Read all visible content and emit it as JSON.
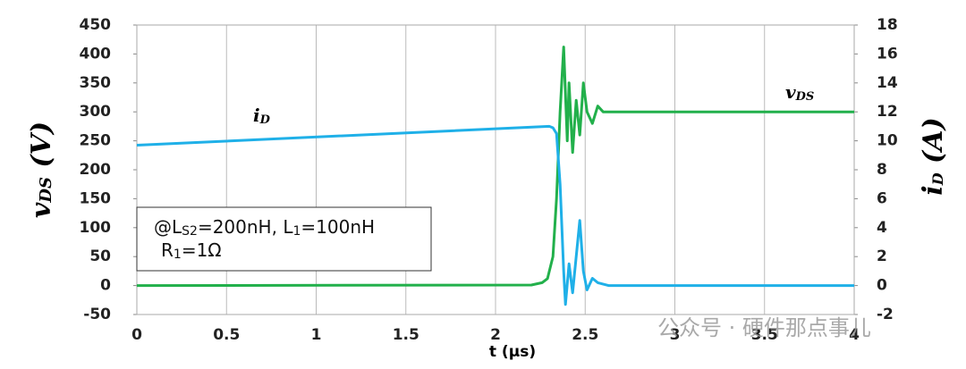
{
  "chart_data": {
    "type": "line",
    "xlabel": [
      "t (μs)"
    ],
    "ylabel": [
      "v",
      "DS",
      " (V)"
    ],
    "y2label": [
      "i",
      "D",
      " (A)"
    ],
    "xlim": [
      0,
      4
    ],
    "xticks": [
      0,
      0.5,
      1,
      1.5,
      2,
      2.5,
      3,
      3.5,
      4
    ],
    "ylim": [
      -50,
      450
    ],
    "yticks": [
      -50,
      0,
      50,
      100,
      150,
      200,
      250,
      300,
      350,
      400,
      450
    ],
    "y2lim": [
      -2,
      18
    ],
    "y2ticks": [
      -2,
      0,
      2,
      4,
      6,
      8,
      10,
      12,
      14,
      16,
      18
    ],
    "grid": "x",
    "series": [
      {
        "name": [
          "v",
          "DS"
        ],
        "color": "#22b04b",
        "x": [
          0,
          2.2,
          2.26,
          2.29,
          2.32,
          2.34,
          2.36,
          2.38,
          2.4,
          2.41,
          2.43,
          2.45,
          2.47,
          2.49,
          2.51,
          2.54,
          2.57,
          2.6,
          4
        ],
        "values": [
          0,
          1,
          5,
          12,
          50,
          150,
          300,
          412,
          250,
          350,
          230,
          320,
          260,
          350,
          300,
          280,
          310,
          300,
          300
        ]
      },
      {
        "name": [
          "i",
          "D"
        ],
        "color": "#1fb0e8",
        "axis": "y2",
        "x": [
          0,
          2.3,
          2.32,
          2.34,
          2.36,
          2.38,
          2.39,
          2.41,
          2.43,
          2.45,
          2.47,
          2.49,
          2.51,
          2.54,
          2.57,
          2.63,
          4
        ],
        "values": [
          9.7,
          11,
          10.9,
          10.5,
          7,
          1,
          -1.3,
          1.5,
          -0.5,
          2,
          4.5,
          1,
          -0.3,
          0.5,
          0.2,
          0,
          0
        ]
      }
    ],
    "annotations": [
      [
        "@L",
        "S2",
        "=200nH, L",
        "1",
        "=100nH"
      ],
      [
        "R",
        "1",
        "=1Ω"
      ]
    ],
    "watermark": "公众号 · 硬件那点事儿"
  }
}
